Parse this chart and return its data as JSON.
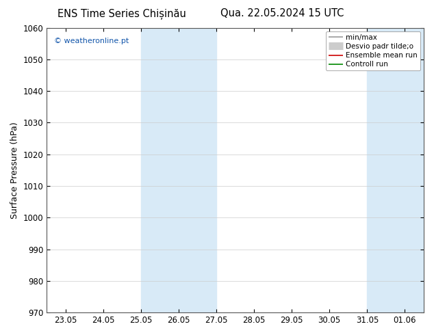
{
  "title_left": "ENS Time Series Chișinău",
  "title_right": "Qua. 22.05.2024 15 UTC",
  "ylabel": "Surface Pressure (hPa)",
  "ylim": [
    970,
    1060
  ],
  "yticks": [
    970,
    980,
    990,
    1000,
    1010,
    1020,
    1030,
    1040,
    1050,
    1060
  ],
  "xtick_labels": [
    "23.05",
    "24.05",
    "25.05",
    "26.05",
    "27.05",
    "28.05",
    "29.05",
    "30.05",
    "31.05",
    "01.06"
  ],
  "xtick_positions": [
    0,
    1,
    2,
    3,
    4,
    5,
    6,
    7,
    8,
    9
  ],
  "xlim": [
    -0.5,
    9.5
  ],
  "shaded_bands": [
    {
      "x_start": 2.0,
      "x_end": 4.0,
      "color": "#d8eaf7"
    },
    {
      "x_start": 8.0,
      "x_end": 9.5,
      "color": "#d8eaf7"
    }
  ],
  "watermark": "© weatheronline.pt",
  "legend_items": [
    {
      "label": "min/max",
      "color": "#999999",
      "lw": 1.2,
      "type": "line"
    },
    {
      "label": "Desvio padr tilde;o",
      "color": "#cccccc",
      "lw": 8,
      "type": "band"
    },
    {
      "label": "Ensemble mean run",
      "color": "#cc0000",
      "lw": 1.2,
      "type": "line"
    },
    {
      "label": "Controll run",
      "color": "#008800",
      "lw": 1.2,
      "type": "line"
    }
  ],
  "bg_color": "#ffffff",
  "plot_bg_color": "#ffffff",
  "grid_color": "#cccccc",
  "title_fontsize": 10.5,
  "tick_fontsize": 8.5,
  "ylabel_fontsize": 9
}
